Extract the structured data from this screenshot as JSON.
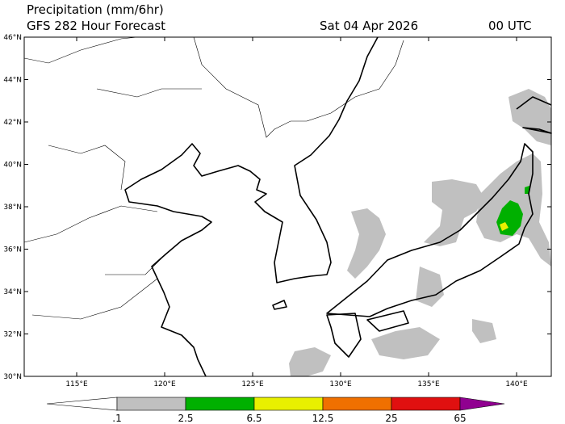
{
  "header": {
    "title": "Precipitation (mm/6hr)",
    "subtitle": "GFS 282 Hour Forecast",
    "date": "Sat 04 Apr 2026",
    "time": "00 UTC"
  },
  "map": {
    "lat_labels": [
      "46°N",
      "44°N",
      "42°N",
      "40°N",
      "38°N",
      "36°N",
      "34°N",
      "32°N",
      "30°N"
    ],
    "lon_labels": [
      "115°E",
      "120°E",
      "125°E",
      "130°E",
      "135°E",
      "140°E"
    ]
  },
  "colorbar": {
    "labels": [
      ".1",
      "2.5",
      "6.5",
      "12.5",
      "25",
      "65"
    ],
    "colors": [
      "#ffffff",
      "#c0c0c0",
      "#00b000",
      "#e8f000",
      "#f07000",
      "#e01010",
      "#900090"
    ]
  }
}
